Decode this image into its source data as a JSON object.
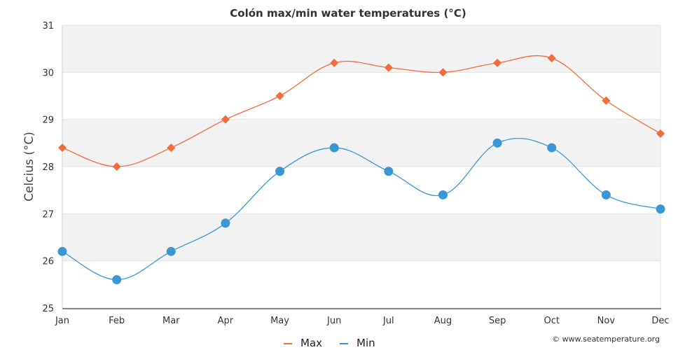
{
  "chart_data": {
    "type": "line",
    "title": "Colón max/min water temperatures (°C)",
    "xlabel": "",
    "ylabel": "Celcius (°C)",
    "categories": [
      "Jan",
      "Feb",
      "Mar",
      "Apr",
      "May",
      "Jun",
      "Jul",
      "Aug",
      "Sep",
      "Oct",
      "Nov",
      "Dec"
    ],
    "series": [
      {
        "name": "Max",
        "color": "#f26b3a",
        "marker": "diamond",
        "values": [
          28.4,
          28.0,
          28.4,
          29.0,
          29.5,
          30.2,
          30.1,
          30.0,
          30.2,
          30.3,
          29.4,
          28.7
        ]
      },
      {
        "name": "Min",
        "color": "#3b97d3",
        "marker": "circle",
        "values": [
          26.2,
          25.6,
          26.2,
          26.8,
          27.9,
          28.4,
          27.9,
          27.4,
          28.5,
          28.4,
          27.4,
          27.1
        ]
      }
    ],
    "ylim": [
      25,
      31
    ],
    "yticks": [
      25,
      26,
      27,
      28,
      29,
      30,
      31
    ],
    "grid": true,
    "legend_position": "bottom-center",
    "credit": "© www.seatemperature.org"
  }
}
